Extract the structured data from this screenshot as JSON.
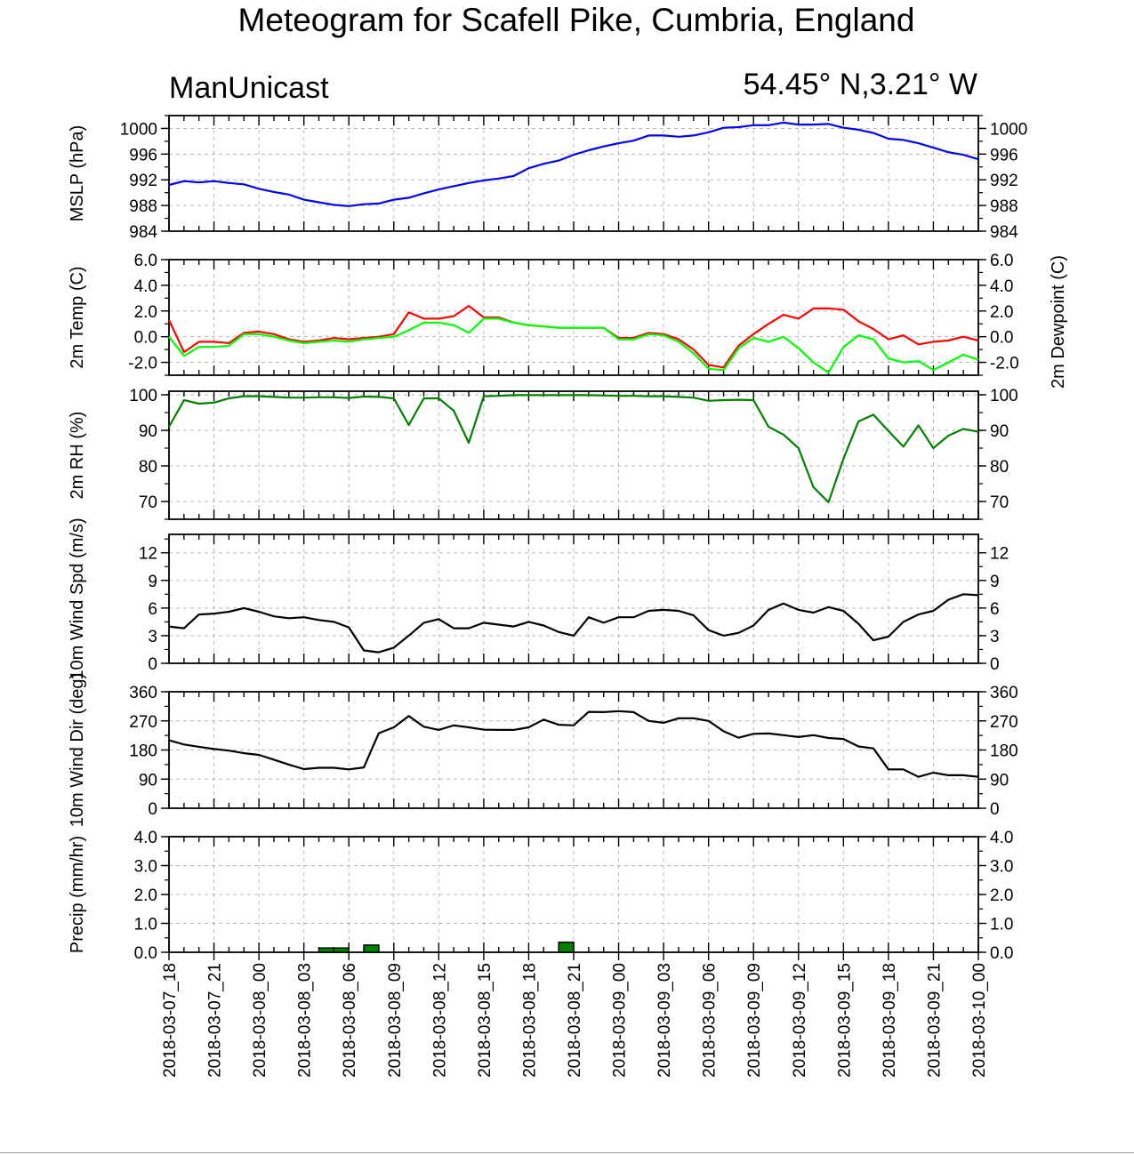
{
  "title": "Meteogram for Scafell Pike, Cumbria, England",
  "brand": "ManUnicast",
  "location": "54.45° N,3.21° W",
  "time_labels": [
    "2018-03-07_18",
    "2018-03-07_21",
    "2018-03-08_00",
    "2018-03-08_03",
    "2018-03-08_06",
    "2018-03-08_09",
    "2018-03-08_12",
    "2018-03-08_15",
    "2018-03-08_18",
    "2018-03-08_21",
    "2018-03-09_00",
    "2018-03-09_03",
    "2018-03-09_06",
    "2018-03-09_09",
    "2018-03-09_12",
    "2018-03-09_15",
    "2018-03-09_18",
    "2018-03-09_21",
    "2018-03-10_00"
  ],
  "colors": {
    "mslp": "#0000ff",
    "temp": "#ff0000",
    "dewpoint": "#00ff00",
    "rh": "#008000",
    "wind": "#000000",
    "precip": "#008000"
  },
  "chart_data": [
    {
      "type": "line",
      "ylabel": "MSLP (hPa)",
      "yticks": [
        "984",
        "988",
        "992",
        "996",
        "1000"
      ],
      "ylim": [
        984,
        1002
      ],
      "grid": true,
      "x_hours": [
        0,
        1,
        2,
        3,
        4,
        5,
        6,
        7,
        8,
        9,
        10,
        11,
        12,
        13,
        14,
        15,
        16,
        17,
        18,
        19,
        20,
        21,
        22,
        23,
        24,
        25,
        26,
        27,
        28,
        29,
        30,
        31,
        32,
        33,
        34,
        35,
        36,
        37,
        38,
        39,
        40,
        41,
        42,
        43,
        44,
        45,
        46,
        47,
        48,
        49,
        50,
        51,
        52,
        53,
        54
      ],
      "series": [
        {
          "name": "",
          "values": [
            991.2,
            991.8,
            991.6,
            991.8,
            991.5,
            991.3,
            990.6,
            990.1,
            989.7,
            988.9,
            988.5,
            988.1,
            987.9,
            988.2,
            988.3,
            988.9,
            989.2,
            989.9,
            990.5,
            991.0,
            991.5,
            991.9,
            992.2,
            992.6,
            993.8,
            994.5,
            995.0,
            995.9,
            996.6,
            997.2,
            997.7,
            998.1,
            998.9,
            998.9,
            998.7,
            998.9,
            999.4,
            1000.1,
            1000.2,
            1000.5,
            1000.5,
            1000.9,
            1000.6,
            1000.6,
            1000.7,
            1000.1,
            999.8,
            999.3,
            998.4,
            998.2,
            997.7,
            997.0,
            996.3,
            995.9,
            995.2
          ]
        }
      ]
    },
    {
      "type": "line",
      "ylabel": "2m Temp (C)",
      "ylabel_right": "2m Dewpoint (C)",
      "yticks": [
        "-2.0",
        "0.0",
        "2.0",
        "4.0",
        "6.0"
      ],
      "ylim": [
        -3,
        6
      ],
      "grid": true,
      "x_hours": [
        0,
        1,
        2,
        3,
        4,
        5,
        6,
        7,
        8,
        9,
        10,
        11,
        12,
        13,
        14,
        15,
        16,
        17,
        18,
        19,
        20,
        21,
        22,
        23,
        24,
        25,
        26,
        27,
        28,
        29,
        30,
        31,
        32,
        33,
        34,
        35,
        36,
        37,
        38,
        39,
        40,
        41,
        42,
        43,
        44,
        45,
        46,
        47,
        48,
        49,
        50,
        51,
        52,
        53,
        54
      ],
      "series": [
        {
          "name": "",
          "values": [
            1.3,
            -1.2,
            -0.4,
            -0.4,
            -0.5,
            0.3,
            0.4,
            0.2,
            -0.2,
            -0.4,
            -0.3,
            -0.1,
            -0.2,
            -0.1,
            0.0,
            0.2,
            1.9,
            1.4,
            1.4,
            1.6,
            2.4,
            1.5,
            1.5,
            1.1,
            0.9,
            0.8,
            0.7,
            0.7,
            0.7,
            0.7,
            -0.1,
            -0.1,
            0.3,
            0.2,
            -0.2,
            -1.0,
            -2.2,
            -2.4,
            -0.7,
            0.2,
            1.0,
            1.7,
            1.4,
            2.2,
            2.2,
            2.1,
            1.2,
            0.6,
            -0.2,
            0.1,
            -0.6,
            -0.4,
            -0.3,
            0.0,
            -0.3
          ]
        },
        {
          "name": "",
          "values": [
            0.0,
            -1.5,
            -0.8,
            -0.8,
            -0.7,
            0.2,
            0.2,
            0.0,
            -0.3,
            -0.5,
            -0.4,
            -0.3,
            -0.4,
            -0.2,
            -0.1,
            0.0,
            0.5,
            1.1,
            1.1,
            0.9,
            0.3,
            1.4,
            1.4,
            1.1,
            0.9,
            0.8,
            0.7,
            0.7,
            0.7,
            0.7,
            -0.2,
            -0.2,
            0.2,
            0.1,
            -0.4,
            -1.3,
            -2.5,
            -2.6,
            -0.9,
            -0.1,
            -0.4,
            0.0,
            -0.9,
            -2.0,
            -2.8,
            -0.8,
            0.1,
            -0.2,
            -1.7,
            -2.0,
            -1.9,
            -2.6,
            -2.0,
            -1.4,
            -1.8
          ]
        }
      ]
    },
    {
      "type": "line",
      "ylabel": "2m RH (%)",
      "yticks": [
        "70",
        "80",
        "90",
        "100"
      ],
      "ylim": [
        65,
        101
      ],
      "grid": true,
      "x_hours": [
        0,
        1,
        2,
        3,
        4,
        5,
        6,
        7,
        8,
        9,
        10,
        11,
        12,
        13,
        14,
        15,
        16,
        17,
        18,
        19,
        20,
        21,
        22,
        23,
        24,
        25,
        26,
        27,
        28,
        29,
        30,
        31,
        32,
        33,
        34,
        35,
        36,
        37,
        38,
        39,
        40,
        41,
        42,
        43,
        44,
        45,
        46,
        47,
        48,
        49,
        50,
        51,
        52,
        53,
        54
      ],
      "series": [
        {
          "name": "",
          "values": [
            91,
            98.5,
            97.5,
            97.8,
            99,
            99.6,
            99.6,
            99.4,
            99.2,
            99.2,
            99.3,
            99.3,
            99.1,
            99.5,
            99.4,
            99,
            91.5,
            99,
            99,
            95.5,
            86.5,
            99.6,
            99.7,
            99.9,
            99.9,
            99.9,
            99.9,
            99.9,
            99.9,
            99.8,
            99.7,
            99.7,
            99.6,
            99.6,
            99.4,
            99.2,
            98.3,
            98.5,
            98.6,
            98.5,
            91,
            88.8,
            85,
            74,
            69.8,
            82,
            92.5,
            94.4,
            89.8,
            85.4,
            91.4,
            85,
            88.5,
            90.4,
            89.6
          ]
        }
      ]
    },
    {
      "type": "line",
      "ylabel": "10m Wind Spd (m/s)",
      "yticks": [
        "0",
        "3",
        "6",
        "9",
        "12"
      ],
      "ylim": [
        0,
        14
      ],
      "grid": true,
      "x_hours": [
        0,
        1,
        2,
        3,
        4,
        5,
        6,
        7,
        8,
        9,
        10,
        11,
        12,
        13,
        14,
        15,
        16,
        17,
        18,
        19,
        20,
        21,
        22,
        23,
        24,
        25,
        26,
        27,
        28,
        29,
        30,
        31,
        32,
        33,
        34,
        35,
        36,
        37,
        38,
        39,
        40,
        41,
        42,
        43,
        44,
        45,
        46,
        47,
        48,
        49,
        50,
        51,
        52,
        53,
        54
      ],
      "series": [
        {
          "name": "",
          "values": [
            4.0,
            3.8,
            5.3,
            5.4,
            5.6,
            6.0,
            5.6,
            5.1,
            4.9,
            5.0,
            4.7,
            4.5,
            3.9,
            1.4,
            1.2,
            1.7,
            3.0,
            4.4,
            4.8,
            3.8,
            3.8,
            4.4,
            4.2,
            4.0,
            4.5,
            4.1,
            3.4,
            3.0,
            5.0,
            4.4,
            5.0,
            5.0,
            5.7,
            5.8,
            5.7,
            5.2,
            3.6,
            3.0,
            3.3,
            4.1,
            5.8,
            6.5,
            5.8,
            5.5,
            6.1,
            5.7,
            4.3,
            2.5,
            2.9,
            4.5,
            5.3,
            5.7,
            6.9,
            7.5,
            7.4
          ]
        }
      ]
    },
    {
      "type": "line",
      "ylabel": "10m Wind Dir (deg)",
      "yticks": [
        "0",
        "90",
        "180",
        "270",
        "360"
      ],
      "ylim": [
        0,
        360
      ],
      "grid": true,
      "x_hours": [
        0,
        1,
        2,
        3,
        4,
        5,
        6,
        7,
        8,
        9,
        10,
        11,
        12,
        13,
        14,
        15,
        16,
        17,
        18,
        19,
        20,
        21,
        22,
        23,
        24,
        25,
        26,
        27,
        28,
        29,
        30,
        31,
        32,
        33,
        34,
        35,
        36,
        37,
        38,
        39,
        40,
        41,
        42,
        43,
        44,
        45,
        46,
        47,
        48,
        49,
        50,
        51,
        52,
        53,
        54
      ],
      "series": [
        {
          "name": "",
          "values": [
            210,
            197,
            190,
            183,
            178,
            170,
            165,
            150,
            135,
            121,
            125,
            125,
            120,
            126,
            232,
            250,
            285,
            252,
            242,
            256,
            250,
            243,
            242,
            242,
            250,
            274,
            258,
            256,
            298,
            297,
            300,
            297,
            270,
            264,
            278,
            278,
            270,
            238,
            218,
            230,
            231,
            226,
            220,
            226,
            217,
            214,
            191,
            185,
            120,
            120,
            97,
            110,
            102,
            102,
            97
          ]
        }
      ]
    },
    {
      "type": "bar",
      "ylabel": "Precip (mm/hr)",
      "yticks": [
        "0.0",
        "1.0",
        "2.0",
        "3.0",
        "4.0"
      ],
      "ylim": [
        0,
        4
      ],
      "grid": true,
      "x_hours": [
        10,
        11,
        13,
        26
      ],
      "values": [
        0.15,
        0.15,
        0.25,
        0.35
      ]
    }
  ]
}
